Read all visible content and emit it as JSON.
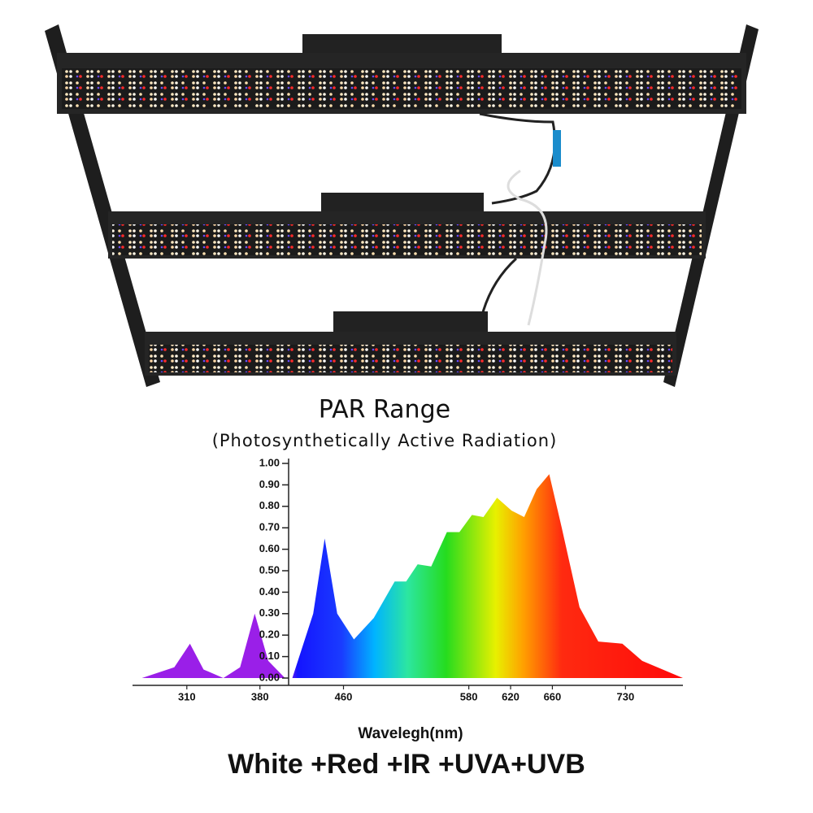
{
  "chart_data": {
    "type": "area",
    "title": "PAR Range",
    "subtitle": "(Photosynthetically Active Radiation)",
    "x_label": "Wavelegh(nm)",
    "caption": "White +Red +IR +UVA+UVB",
    "x": [
      267,
      298,
      313,
      326,
      345,
      361,
      375,
      388,
      404,
      411,
      431,
      442,
      454,
      470,
      489,
      509,
      520,
      531,
      544,
      559,
      571,
      583,
      594,
      607,
      621,
      633,
      645,
      657,
      669,
      686,
      704,
      727,
      746,
      785
    ],
    "values": [
      0,
      0.05,
      0.16,
      0.04,
      0,
      0.05,
      0.3,
      0.08,
      0,
      0,
      0.3,
      0.65,
      0.3,
      0.18,
      0.28,
      0.45,
      0.45,
      0.53,
      0.52,
      0.68,
      0.68,
      0.76,
      0.75,
      0.84,
      0.78,
      0.75,
      0.88,
      0.95,
      0.7,
      0.33,
      0.17,
      0.16,
      0.08,
      0
    ],
    "xlim": [
      258,
      785
    ],
    "ylim": [
      0,
      1
    ],
    "xticks": [
      310,
      380,
      460,
      580,
      620,
      660,
      730
    ],
    "yticks": [
      {
        "value": 0,
        "label": "0.00"
      },
      {
        "value": 0.1,
        "label": "0.10"
      },
      {
        "value": 0.2,
        "label": "0.20"
      },
      {
        "value": 0.3,
        "label": "0.30"
      },
      {
        "value": 0.4,
        "label": "0.40"
      },
      {
        "value": 0.5,
        "label": "0.50"
      },
      {
        "value": 0.6,
        "label": "0.60"
      },
      {
        "value": 0.7,
        "label": "0.70"
      },
      {
        "value": 0.8,
        "label": "0.80"
      },
      {
        "value": 0.9,
        "label": "0.90"
      },
      {
        "value": 1,
        "label": "1.00"
      }
    ]
  }
}
